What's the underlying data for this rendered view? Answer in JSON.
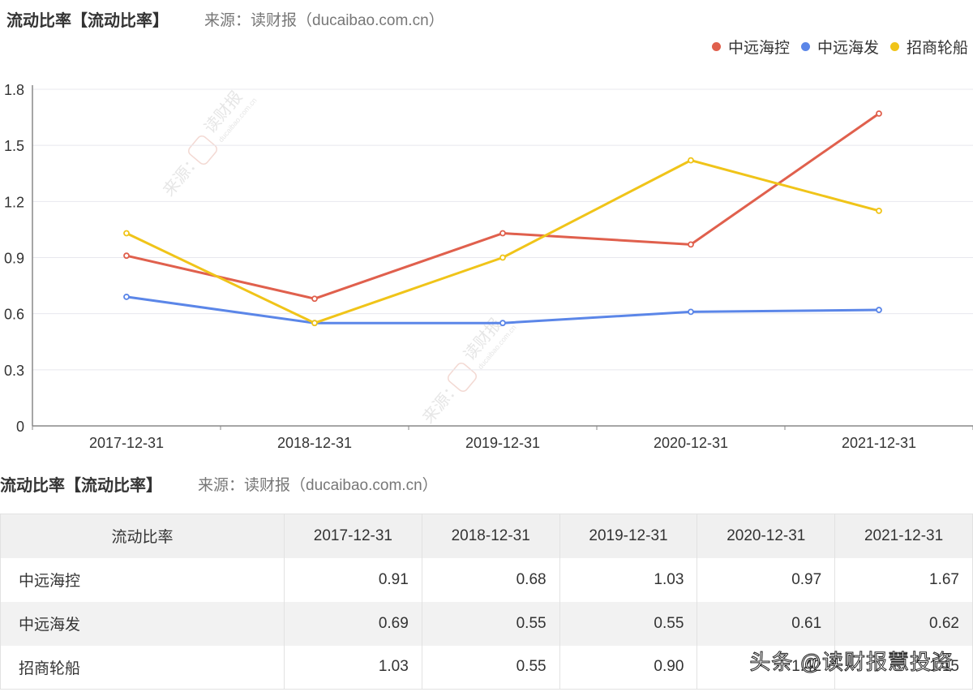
{
  "header": {
    "title": "流动比率【流动比率】",
    "source": "来源：读财报（ducaibao.com.cn）"
  },
  "legend": [
    {
      "name": "中远海控",
      "color": "#e0604d"
    },
    {
      "name": "中远海发",
      "color": "#5b86e8"
    },
    {
      "name": "招商轮船",
      "color": "#f0c419"
    }
  ],
  "chart_data": {
    "type": "line",
    "title": "流动比率【流动比率】",
    "subtitle": "来源：读财报（ducaibao.com.cn）",
    "xlabel": "",
    "ylabel": "",
    "categories": [
      "2017-12-31",
      "2018-12-31",
      "2019-12-31",
      "2020-12-31",
      "2021-12-31"
    ],
    "yticks": [
      "0",
      "0.3",
      "0.6",
      "0.9",
      "1.2",
      "1.5",
      "1.8"
    ],
    "ylim": [
      0,
      1.8
    ],
    "grid": true,
    "legend_position": "top-right",
    "series": [
      {
        "name": "中远海控",
        "color": "#e0604d",
        "values": [
          0.91,
          0.68,
          1.03,
          0.97,
          1.67
        ]
      },
      {
        "name": "中远海发",
        "color": "#5b86e8",
        "values": [
          0.69,
          0.55,
          0.55,
          0.61,
          0.62
        ]
      },
      {
        "name": "招商轮船",
        "color": "#f0c419",
        "values": [
          1.03,
          0.55,
          0.9,
          1.42,
          1.15
        ]
      }
    ]
  },
  "watermark": {
    "prefix": "来源：",
    "brand": "读财报",
    "url": "ducaibao.com.cn"
  },
  "table": {
    "title": "流动比率【流动比率】",
    "source": "来源：读财报（ducaibao.com.cn）",
    "headers": [
      "流动比率",
      "2017-12-31",
      "2018-12-31",
      "2019-12-31",
      "2020-12-31",
      "2021-12-31"
    ],
    "rows": [
      {
        "name": "中远海控",
        "values": [
          "0.91",
          "0.68",
          "1.03",
          "0.97",
          "1.67"
        ]
      },
      {
        "name": "中远海发",
        "values": [
          "0.69",
          "0.55",
          "0.55",
          "0.61",
          "0.62"
        ]
      },
      {
        "name": "招商轮船",
        "values": [
          "1.03",
          "0.55",
          "0.90",
          "1.42",
          "1.15"
        ]
      }
    ]
  },
  "overlay_watermark": "头条 @读财报慧投资"
}
